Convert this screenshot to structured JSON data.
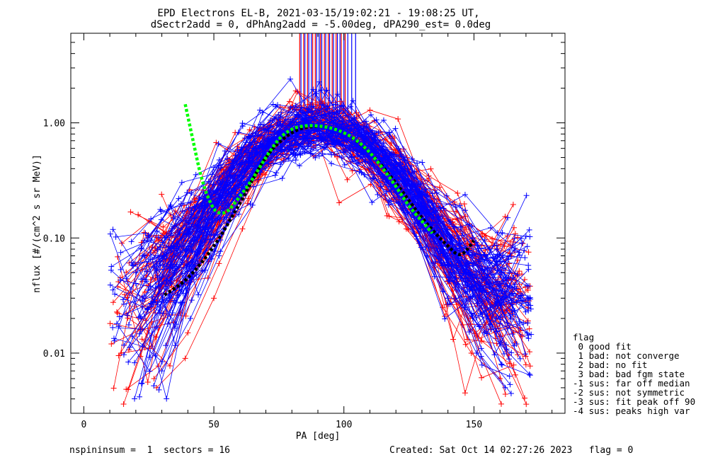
{
  "title_line1": "EPD Electrons EL-B, 2021-03-15/19:02:21 - 19:08:25 UT,",
  "title_line2": "dSectr2add = 0, dPhAng2add = -5.00deg, dPA290_est=   0.0deg",
  "footer_left": "nspininsum =  1  sectors = 16",
  "footer_right": "Created: Sat Oct 14 02:27:26 2023   flag = 0",
  "legend": {
    "title": "flag",
    "items": [
      " 0 good fit",
      " 1 bad: not converge",
      " 2 bad: no fit",
      " 3 bad: bad fgm state",
      "-1 sus: far off median",
      "-2 sus: not symmetric",
      "-3 sus: fit peak off 90",
      "-4 sus: peaks high var"
    ]
  },
  "colors": {
    "red": "#ff0000",
    "blue": "#0000ff",
    "green": "#00ff00",
    "black": "#000000"
  },
  "chart_data": {
    "type": "line",
    "xlabel": "PA [deg]",
    "ylabel": "nflux [#/(cm^2 s sr MeV)]",
    "xlim": [
      -5,
      185
    ],
    "ylim": [
      0.003,
      6.0
    ],
    "yscale": "log",
    "xticks": [
      0,
      50,
      100,
      150
    ],
    "xtick_labels": [
      "0",
      "50",
      "100",
      "150"
    ],
    "yticks": [
      0.01,
      0.1,
      1.0
    ],
    "ytick_labels": [
      "0.01",
      "0.10",
      "1.00"
    ],
    "grid": false,
    "example_red_traces": [
      {
        "x": [
          27,
          40,
          52,
          63,
          74,
          85,
          96,
          107,
          118,
          129,
          140,
          151,
          162
        ],
        "y": [
          0.006,
          0.015,
          0.06,
          0.2,
          0.6,
          0.88,
          0.9,
          0.65,
          0.28,
          0.09,
          0.03,
          0.014,
          0.03
        ]
      },
      {
        "x": [
          14,
          25,
          36,
          47,
          58,
          69,
          80,
          91,
          102,
          113,
          124,
          135,
          146
        ],
        "y": [
          0.045,
          0.06,
          0.07,
          0.1,
          0.16,
          0.4,
          0.85,
          0.95,
          0.75,
          0.4,
          0.12,
          0.06,
          0.1
        ]
      },
      {
        "x": [
          28,
          39,
          50,
          61,
          72,
          83,
          94,
          105,
          116,
          127,
          138,
          149,
          160
        ],
        "y": [
          0.005,
          0.009,
          0.03,
          0.12,
          0.45,
          0.8,
          0.95,
          0.7,
          0.33,
          0.11,
          0.025,
          0.01,
          0.006
        ]
      }
    ],
    "example_blue_traces": [
      {
        "x": [
          22,
          33,
          44,
          55,
          66,
          77,
          88,
          99,
          110,
          121,
          132,
          143,
          154,
          165
        ],
        "y": [
          0.02,
          0.03,
          0.06,
          0.15,
          0.4,
          0.82,
          0.95,
          0.8,
          0.45,
          0.2,
          0.07,
          0.03,
          0.015,
          0.045
        ]
      },
      {
        "x": [
          30,
          41,
          52,
          63,
          74,
          85,
          96,
          107,
          118,
          129,
          140,
          151,
          162
        ],
        "y": [
          0.007,
          0.02,
          0.07,
          0.28,
          0.72,
          0.98,
          0.92,
          0.6,
          0.28,
          0.09,
          0.03,
          0.01,
          0.005
        ]
      },
      {
        "x": [
          20,
          31,
          42,
          53,
          64,
          75,
          86,
          97,
          108,
          119,
          130,
          141,
          152,
          163
        ],
        "y": [
          0.05,
          0.07,
          0.1,
          0.2,
          0.45,
          0.85,
          0.98,
          0.85,
          0.55,
          0.28,
          0.14,
          0.08,
          0.05,
          0.15
        ]
      }
    ],
    "fit_black": {
      "x": [
        31,
        40,
        50,
        60,
        70,
        80,
        90,
        100,
        110,
        120,
        130,
        140,
        145,
        150
      ],
      "y": [
        0.032,
        0.045,
        0.085,
        0.2,
        0.5,
        0.82,
        0.93,
        0.82,
        0.55,
        0.3,
        0.15,
        0.085,
        0.072,
        0.095
      ]
    },
    "fit_green": {
      "x": [
        39,
        42,
        45,
        48,
        51,
        55,
        60,
        65,
        70,
        75,
        80,
        85,
        90,
        95,
        100,
        105,
        110,
        115,
        120,
        125,
        130,
        134
      ],
      "y": [
        1.45,
        0.7,
        0.35,
        0.22,
        0.17,
        0.17,
        0.23,
        0.33,
        0.5,
        0.72,
        0.88,
        0.94,
        0.94,
        0.9,
        0.82,
        0.7,
        0.55,
        0.4,
        0.28,
        0.19,
        0.14,
        0.11
      ]
    },
    "vertical_lines_red_x": [
      83,
      84.5,
      86,
      88,
      89,
      91,
      92.5,
      94,
      95.5,
      97,
      99,
      100.5
    ],
    "vertical_lines_blue_x": [
      83.5,
      85,
      86.5,
      87.5,
      89.5,
      90.5,
      91.5,
      93,
      94.5,
      96,
      97.5,
      98.5,
      100,
      101.5,
      103,
      104.5
    ],
    "vertical_lines_ymin": 1.2,
    "vertical_lines_ymax": 6.0
  }
}
